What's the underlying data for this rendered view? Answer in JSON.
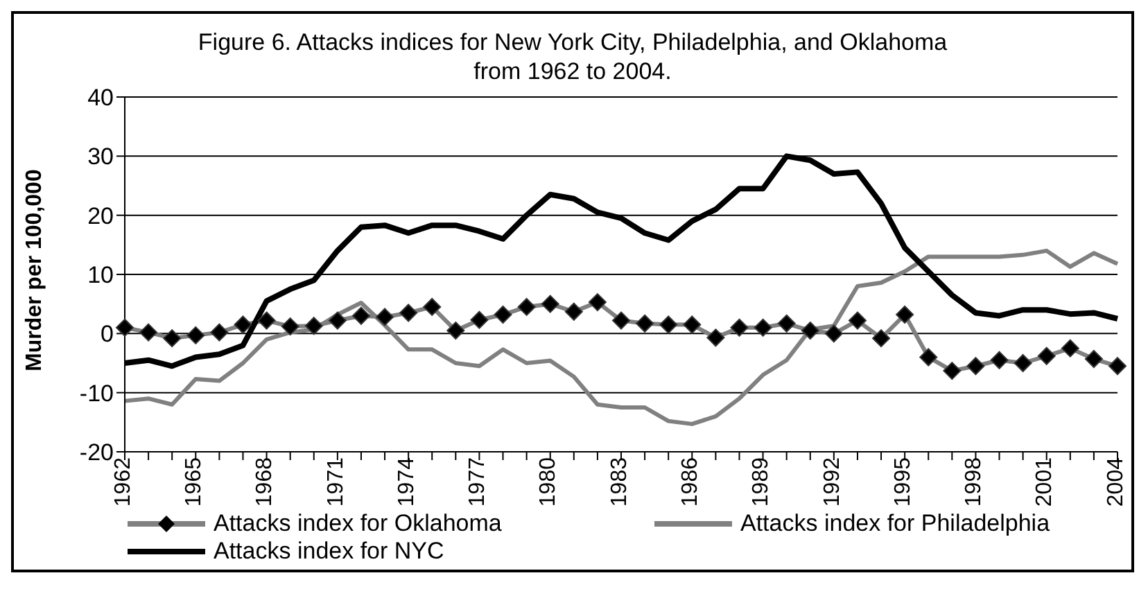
{
  "chart_data": {
    "type": "line",
    "title": "Figure 6.  Attacks indices for New York City, Philadelphia, and Oklahoma from 1962 to 2004.",
    "ylabel": "Murder per 100,000",
    "categories": [
      "1962",
      null,
      null,
      "1965",
      null,
      null,
      "1968",
      null,
      null,
      "1971",
      null,
      null,
      "1974",
      null,
      null,
      "1977",
      null,
      null,
      "1980",
      null,
      null,
      "1983",
      null,
      null,
      "1986",
      null,
      null,
      "1989",
      null,
      null,
      "1992",
      null,
      null,
      "1995",
      null,
      null,
      "1998",
      null,
      null,
      "2001",
      null,
      null,
      "2004"
    ],
    "ylim": [
      -20,
      40
    ],
    "yticks": [
      -20,
      -10,
      0,
      10,
      20,
      30,
      40
    ],
    "grid": "y",
    "legend": "bottom",
    "series": [
      {
        "name": "Attacks index for Oklahoma",
        "color": "#808080",
        "marker": "diamond",
        "values": [
          1,
          0.2,
          -0.8,
          -0.3,
          0.2,
          1.5,
          2.2,
          1.2,
          1.3,
          2.2,
          3,
          2.8,
          3.5,
          4.5,
          0.5,
          2.3,
          3.2,
          4.5,
          5,
          3.7,
          5.3,
          2.2,
          1.7,
          1.5,
          1.5,
          -0.7,
          1,
          1,
          1.7,
          0.5,
          0,
          2.2,
          -0.8,
          3.2,
          -4,
          -6.3,
          -5.5,
          -4.5,
          -5,
          -3.8,
          -2.5,
          -4.3,
          -5.5
        ]
      },
      {
        "name": "Attacks index for Philadelphia",
        "color": "#808080",
        "marker": "none",
        "values": [
          -11.4,
          -11,
          -12,
          -7.7,
          -8,
          -5,
          -1,
          0.2,
          0.7,
          3.2,
          5.2,
          1.4,
          -2.7,
          -2.7,
          -5,
          -5.5,
          -2.7,
          -5,
          -4.6,
          -7.3,
          -12,
          -12.5,
          -12.5,
          -14.8,
          -15.3,
          -14,
          -11,
          -7,
          -4.5,
          0.7,
          1.3,
          8,
          8.6,
          10.5,
          13,
          13,
          13,
          13,
          13.3,
          14,
          11.3,
          13.6,
          11.8
        ]
      },
      {
        "name": "Attacks index for NYC",
        "color": "#000000",
        "marker": "none",
        "values": [
          -5,
          -4.5,
          -5.5,
          -4,
          -3.5,
          -2,
          5.5,
          7.5,
          9,
          14,
          18,
          18.3,
          17,
          18.3,
          18.3,
          17.3,
          16,
          20,
          23.5,
          22.8,
          20.5,
          19.5,
          17,
          15.8,
          19,
          21,
          24.5,
          24.5,
          30,
          29.3,
          27,
          27.3,
          22,
          14.5,
          10.5,
          6.5,
          3.5,
          3,
          4,
          4,
          3.3,
          3.5,
          2.5
        ]
      }
    ]
  }
}
